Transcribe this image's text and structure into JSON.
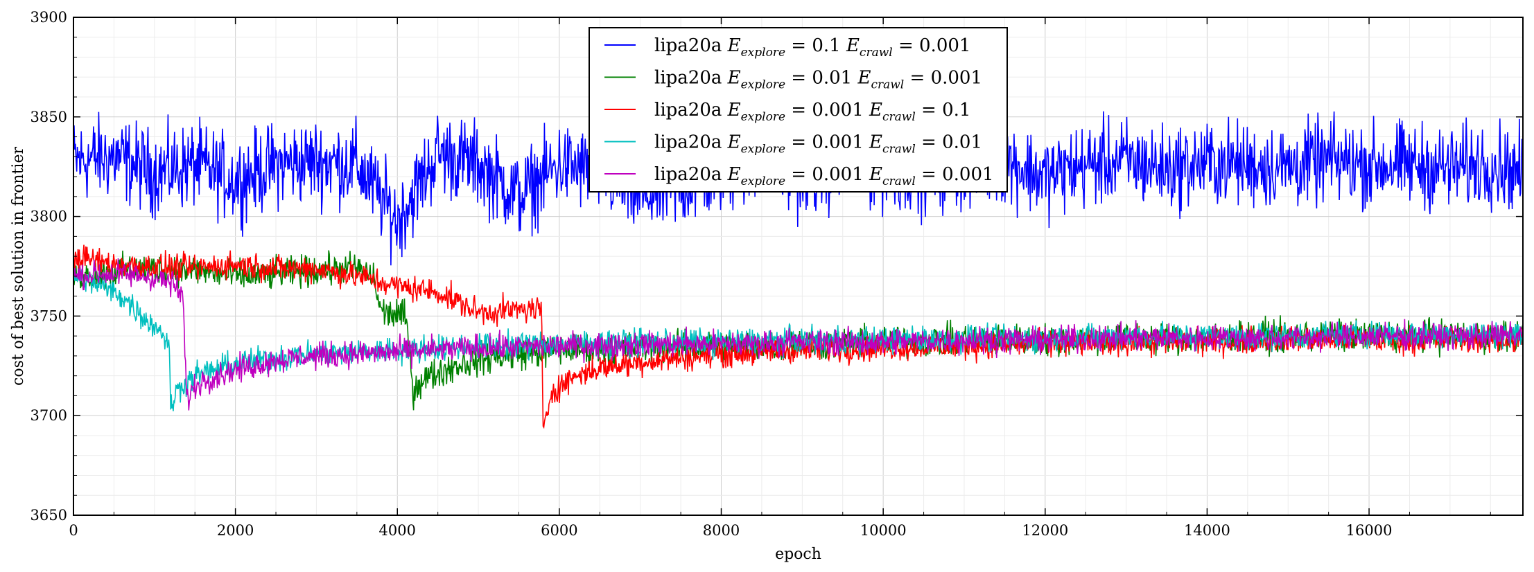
{
  "chart_data": {
    "type": "line",
    "title": "",
    "xlabel": "epoch",
    "ylabel": "cost of best solution in frontier",
    "xlim": [
      0,
      17900
    ],
    "ylim": [
      3650,
      3900
    ],
    "xticks": [
      0,
      2000,
      4000,
      6000,
      8000,
      10000,
      12000,
      14000,
      16000
    ],
    "yticks": [
      3650,
      3700,
      3750,
      3800,
      3850,
      3900
    ],
    "grid": true,
    "legend_position": "top-center",
    "series": [
      {
        "name": "lipa20a E_explore = 0.1 E_crawl = 0.001",
        "legend": {
          "prefix": "lipa20a",
          "e1": "0.1",
          "e2": "0.001"
        },
        "color": "#0000ff",
        "x": [
          0,
          500,
          1000,
          1500,
          2000,
          2500,
          3000,
          3500,
          4000,
          4500,
          5000,
          5500,
          6000,
          6500,
          7000,
          7500,
          8000,
          8500,
          9000,
          9500,
          10000,
          10500,
          11000,
          11500,
          12000,
          12500,
          13000,
          13500,
          14000,
          14500,
          15000,
          15500,
          16000,
          16500,
          17000,
          17500,
          17900
        ],
        "y": [
          3828,
          3830,
          3822,
          3826,
          3818,
          3826,
          3828,
          3826,
          3798,
          3832,
          3826,
          3810,
          3826,
          3822,
          3810,
          3815,
          3822,
          3828,
          3820,
          3826,
          3824,
          3822,
          3825,
          3828,
          3820,
          3826,
          3828,
          3824,
          3827,
          3826,
          3825,
          3828,
          3826,
          3826,
          3824,
          3827,
          3822
        ],
        "spread": 16
      },
      {
        "name": "lipa20a E_explore = 0.01 E_crawl = 0.001",
        "legend": {
          "prefix": "lipa20a",
          "e1": "0.01",
          "e2": "0.001"
        },
        "color": "#008000",
        "x": [
          0,
          300,
          600,
          1000,
          1500,
          2000,
          2500,
          3000,
          3500,
          3700,
          3800,
          4100,
          4200,
          4300,
          4700,
          5000,
          5500,
          6000,
          7000,
          8000,
          9000,
          10000,
          11000,
          12000,
          13000,
          14000,
          15000,
          16000,
          17000,
          17900
        ],
        "y": [
          3770,
          3771,
          3773,
          3774,
          3773,
          3770,
          3771,
          3773,
          3774,
          3770,
          3752,
          3750,
          3712,
          3718,
          3725,
          3728,
          3731,
          3733,
          3734,
          3735,
          3736,
          3737,
          3738,
          3738,
          3739,
          3739,
          3740,
          3740,
          3740,
          3740
        ],
        "spread": 6
      },
      {
        "name": "lipa20a E_explore = 0.001 E_crawl = 0.1",
        "legend": {
          "prefix": "lipa20a",
          "e1": "0.001",
          "e2": "0.1"
        },
        "color": "#ff0000",
        "x": [
          0,
          500,
          1000,
          1500,
          2000,
          2500,
          3000,
          3500,
          4000,
          4500,
          5000,
          5500,
          5780,
          5800,
          5900,
          6200,
          6500,
          7000,
          7500,
          8000,
          9000,
          10000,
          11000,
          12000,
          13000,
          14000,
          15000,
          16000,
          17000,
          17900
        ],
        "y": [
          3780,
          3776,
          3775,
          3774,
          3776,
          3774,
          3774,
          3770,
          3765,
          3762,
          3752,
          3753,
          3754,
          3690,
          3712,
          3720,
          3724,
          3727,
          3729,
          3731,
          3733,
          3734,
          3735,
          3736,
          3737,
          3737,
          3738,
          3738,
          3738,
          3738
        ],
        "spread": 5
      },
      {
        "name": "lipa20a E_explore = 0.001 E_crawl = 0.01",
        "legend": {
          "prefix": "lipa20a",
          "e1": "0.001",
          "e2": "0.01"
        },
        "color": "#00bfbf",
        "x": [
          0,
          300,
          600,
          900,
          1100,
          1180,
          1200,
          1300,
          1500,
          2000,
          2500,
          3000,
          4000,
          5000,
          6000,
          7000,
          8000,
          9000,
          10000,
          11000,
          12000,
          13000,
          14000,
          15000,
          16000,
          17000,
          17900
        ],
        "y": [
          3770,
          3766,
          3760,
          3748,
          3742,
          3735,
          3705,
          3714,
          3720,
          3726,
          3729,
          3731,
          3733,
          3735,
          3736,
          3737,
          3737,
          3738,
          3738,
          3739,
          3739,
          3740,
          3740,
          3740,
          3741,
          3741,
          3741
        ],
        "spread": 5
      },
      {
        "name": "lipa20a E_explore = 0.001 E_crawl = 0.001",
        "legend": {
          "prefix": "lipa20a",
          "e1": "0.001",
          "e2": "0.001"
        },
        "color": "#bf00bf",
        "x": [
          0,
          300,
          600,
          900,
          1200,
          1350,
          1400,
          1450,
          1600,
          2000,
          2500,
          3000,
          4000,
          5000,
          6000,
          7000,
          8000,
          9000,
          10000,
          11000,
          12000,
          13000,
          14000,
          15000,
          16000,
          17000,
          17900
        ],
        "y": [
          3770,
          3771,
          3771,
          3770,
          3767,
          3760,
          3708,
          3712,
          3718,
          3723,
          3728,
          3730,
          3732,
          3734,
          3735,
          3736,
          3736,
          3737,
          3737,
          3738,
          3738,
          3739,
          3739,
          3739,
          3740,
          3740,
          3740
        ],
        "spread": 5
      }
    ]
  }
}
